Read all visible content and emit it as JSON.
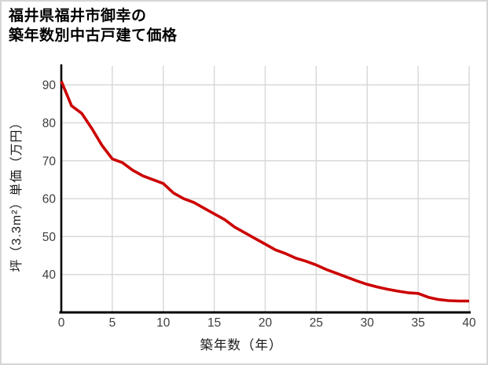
{
  "page": {
    "background_color": "#ffffff",
    "border_color": "#d5d5d5"
  },
  "chart_data": {
    "type": "line",
    "title": "福井県福井市御幸の\n築年数別中古戸建て価格",
    "xlabel": "築年数（年）",
    "ylabel": "坪（3.3m²）単価（万円）",
    "x": [
      0,
      1,
      2,
      3,
      4,
      5,
      6,
      7,
      8,
      9,
      10,
      11,
      12,
      13,
      14,
      15,
      16,
      17,
      18,
      19,
      20,
      21,
      22,
      23,
      24,
      25,
      26,
      27,
      28,
      29,
      30,
      31,
      32,
      33,
      34,
      35,
      36,
      37,
      38,
      39,
      40
    ],
    "series": [
      {
        "values": [
          91,
          84.5,
          82.5,
          78.5,
          74,
          70.5,
          69.5,
          67.5,
          66,
          65,
          64,
          61.5,
          60,
          59,
          57.5,
          56,
          54.5,
          52.5,
          51,
          49.5,
          48,
          46.5,
          45.5,
          44.3,
          43.5,
          42.5,
          41.3,
          40.3,
          39.3,
          38.3,
          37.4,
          36.7,
          36.1,
          35.6,
          35.2,
          35,
          34,
          33.4,
          33.1,
          33,
          33
        ],
        "color": "#cc0000",
        "stroke_width": 3.6
      }
    ],
    "xlim": [
      0,
      40
    ],
    "ylim": [
      30,
      95
    ],
    "xticks": [
      0,
      5,
      10,
      15,
      20,
      25,
      30,
      35,
      40
    ],
    "yticks": [
      40,
      50,
      60,
      70,
      80,
      90
    ],
    "grid": true,
    "gridline_color": "#d9d9d9",
    "axis_color": "#000000",
    "tick_label_color": "#3d3d3d",
    "legend": "none"
  }
}
